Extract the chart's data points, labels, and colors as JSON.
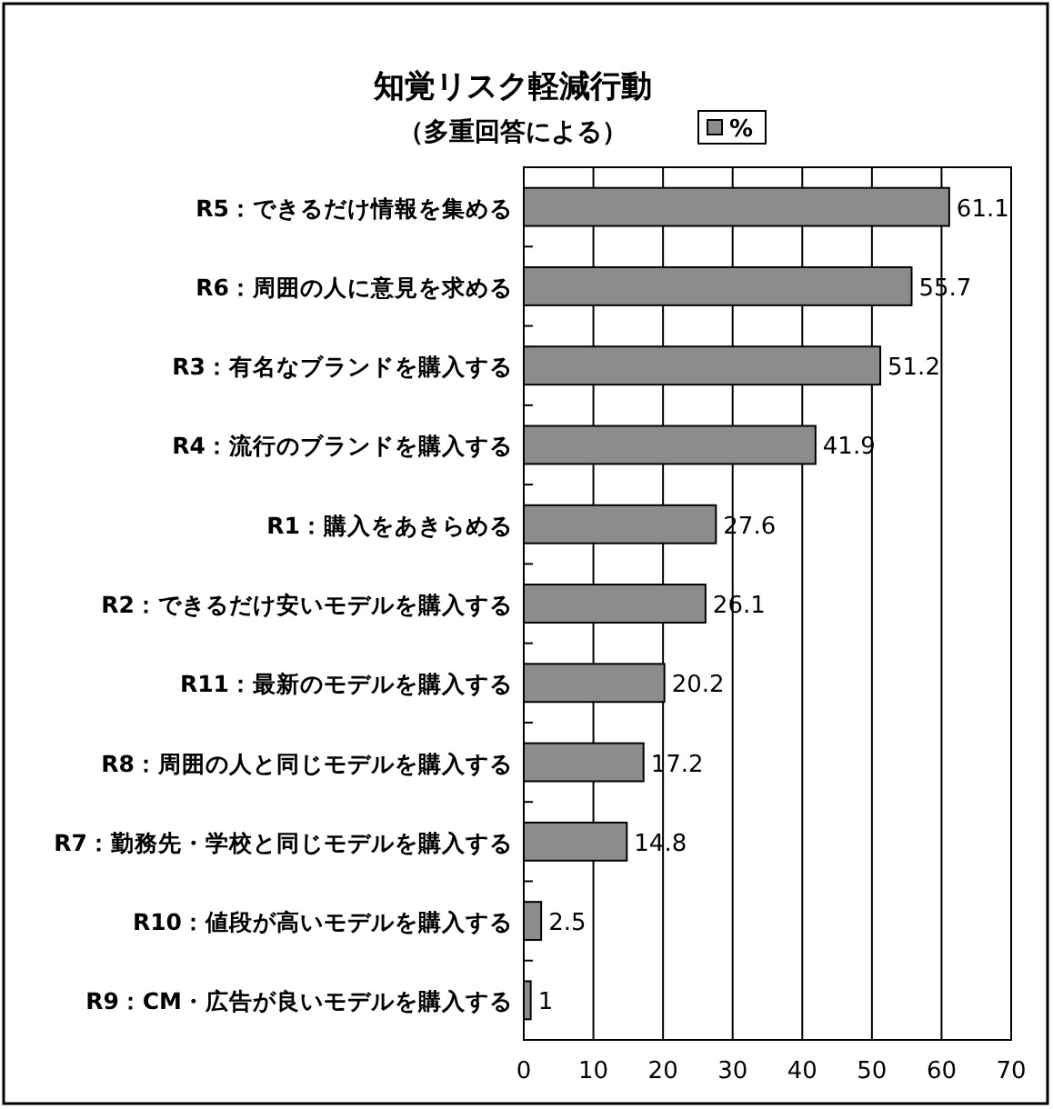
{
  "chart_data": {
    "type": "bar",
    "orientation": "horizontal",
    "title": "知覚リスク軽減行動",
    "subtitle": "（多重回答による）",
    "categories": [
      "R5：できるだけ情報を集める",
      "R6：周囲の人に意見を求める",
      "R3：有名なブランドを購入する",
      "R4：流行のブランドを購入する",
      "R1：購入をあきらめる",
      "R2：できるだけ安いモデルを購入する",
      "R11：最新のモデルを購入する",
      "R8：周囲の人と同じモデルを購入する",
      "R7：勤務先・学校と同じモデルを購入する",
      "R10：値段が高いモデルを購入する",
      "R9：CM・広告が良いモデルを購入する"
    ],
    "series": [
      {
        "name": "%",
        "color": "#8c8c8c",
        "values": [
          61.1,
          55.7,
          51.2,
          41.9,
          27.6,
          26.1,
          20.2,
          17.2,
          14.8,
          2.5,
          1
        ]
      }
    ],
    "xlim": [
      0,
      70
    ],
    "xticks": [
      0,
      10,
      20,
      30,
      40,
      50,
      60,
      70
    ],
    "grid": "x",
    "legend": "top",
    "data_labels": true
  }
}
